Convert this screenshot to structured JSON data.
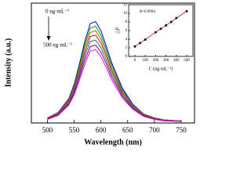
{
  "chart_data": [
    {
      "type": "line",
      "x_label": "Wavelength (nm)",
      "y_label": "Intensity (a.u.)",
      "annotations": [
        "0 ng·mL⁻¹",
        "500 ng·mL⁻¹"
      ],
      "x": [
        500,
        520,
        540,
        550,
        560,
        570,
        580,
        590,
        600,
        610,
        620,
        640,
        660,
        680,
        700,
        720,
        750
      ],
      "series": [
        {
          "color": "#0000ff",
          "values": [
            10,
            21,
            49,
            78,
            119,
            164,
            199,
            203,
            185,
            154,
            121,
            70,
            37,
            18,
            10,
            6,
            4
          ]
        },
        {
          "color": "#00a000",
          "values": [
            10,
            20,
            47,
            74,
            114,
            157,
            190,
            194,
            176,
            147,
            116,
            67,
            35,
            18,
            10,
            6,
            4
          ]
        },
        {
          "color": "#808000",
          "values": [
            9,
            19,
            45,
            71,
            108,
            150,
            181,
            185,
            168,
            140,
            110,
            64,
            34,
            17,
            9,
            6,
            4
          ]
        },
        {
          "color": "#ff0000",
          "values": [
            9,
            18,
            43,
            68,
            103,
            142,
            173,
            176,
            160,
            134,
            105,
            61,
            32,
            16,
            9,
            5,
            4
          ]
        },
        {
          "color": "#008080",
          "values": [
            8,
            17,
            40,
            64,
            97,
            134,
            163,
            166,
            151,
            126,
            99,
            57,
            30,
            15,
            8,
            5,
            3
          ]
        },
        {
          "color": "#800080",
          "values": [
            8,
            16,
            38,
            60,
            92,
            126,
            153,
            156,
            142,
            119,
            93,
            54,
            28,
            14,
            8,
            5,
            3
          ]
        },
        {
          "color": "#ff00ff",
          "values": [
            7,
            15,
            36,
            56,
            86,
            118,
            144,
            147,
            133,
            111,
            87,
            50,
            27,
            13,
            7,
            4,
            3
          ]
        }
      ],
      "xlim": [
        470,
        775
      ],
      "xticks": [
        500,
        550,
        600,
        650,
        700,
        750
      ],
      "ylim": [
        0,
        240
      ]
    },
    {
      "type": "scatter",
      "x_label": "C (ng·mL⁻¹)",
      "y_label": "△P",
      "annotations": [
        "R=0.9994"
      ],
      "x": [
        0,
        50,
        100,
        200,
        250,
        300,
        350,
        400,
        500
      ],
      "values": [
        2.3,
        3.1,
        3.9,
        5.6,
        6.4,
        7.2,
        8.0,
        8.9,
        10.5
      ],
      "color": "#cc0000",
      "xlim": [
        -60,
        560
      ],
      "xticks": [
        0,
        100,
        200,
        300,
        400,
        500
      ],
      "ylim": [
        0,
        12
      ],
      "yticks": [
        0,
        2,
        4,
        6,
        8,
        10,
        12
      ]
    }
  ]
}
